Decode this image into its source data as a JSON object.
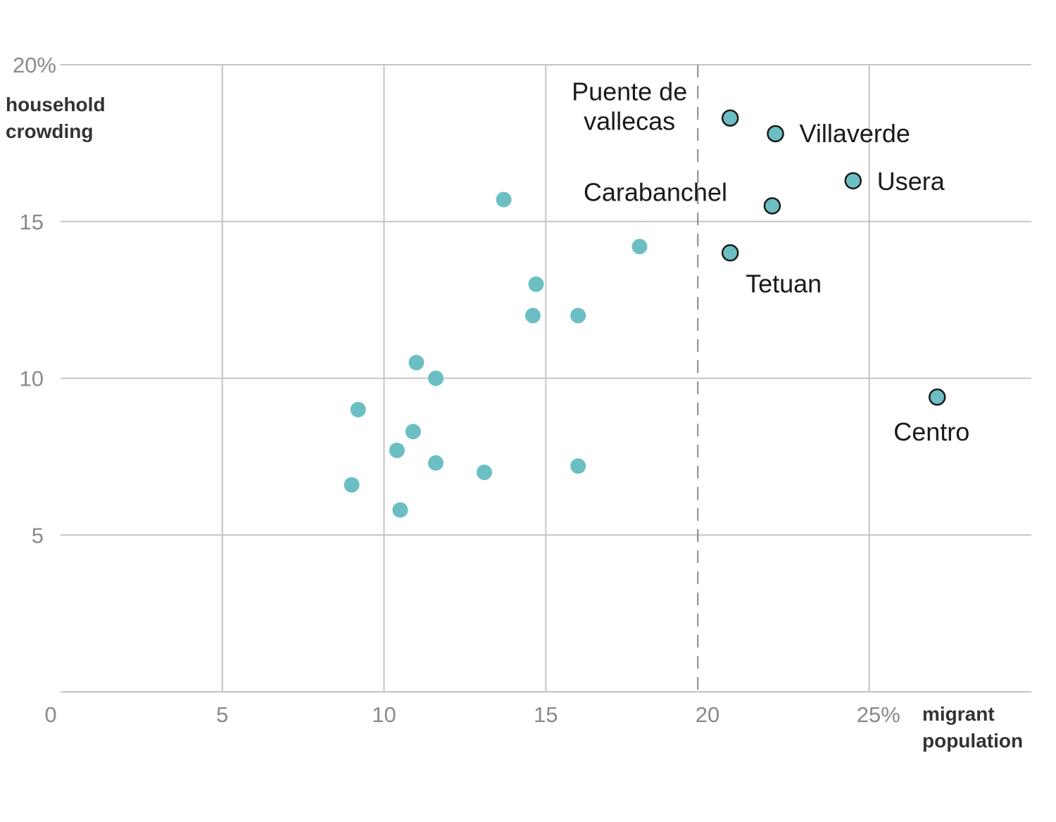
{
  "chart_data": {
    "type": "scatter",
    "title": "",
    "xlabel": [
      "migrant",
      "population"
    ],
    "ylabel": [
      "household",
      "crowding"
    ],
    "xlim": [
      0,
      29
    ],
    "ylim": [
      0,
      20
    ],
    "x_ticks": [
      "0",
      "5",
      "10",
      "15",
      "20",
      "25%"
    ],
    "y_ticks": [
      "5",
      "10",
      "15",
      "20%"
    ],
    "grid": true,
    "reference_line": {
      "axis": "x",
      "value": 19.7,
      "style": "dashed"
    },
    "colors": {
      "point": "#6bbfc3",
      "outline": "#1a1a1a",
      "grid": "#c4c4c4",
      "reference": "#888888"
    },
    "points": [
      {
        "x": 13.7,
        "y": 15.7
      },
      {
        "x": 17.9,
        "y": 14.2
      },
      {
        "x": 14.7,
        "y": 13.0
      },
      {
        "x": 14.6,
        "y": 12.0
      },
      {
        "x": 16.0,
        "y": 12.0
      },
      {
        "x": 11.0,
        "y": 10.5
      },
      {
        "x": 11.6,
        "y": 10.0
      },
      {
        "x": 9.2,
        "y": 9.0
      },
      {
        "x": 10.9,
        "y": 8.3
      },
      {
        "x": 10.4,
        "y": 7.7
      },
      {
        "x": 11.6,
        "y": 7.3
      },
      {
        "x": 13.1,
        "y": 7.0
      },
      {
        "x": 16.0,
        "y": 7.2
      },
      {
        "x": 9.0,
        "y": 6.6
      },
      {
        "x": 10.5,
        "y": 5.8
      }
    ],
    "highlighted": [
      {
        "name": "Puente de vallecas",
        "lines": [
          "Puente de",
          "vallecas"
        ],
        "x": 20.7,
        "y": 18.3
      },
      {
        "name": "Villaverde",
        "lines": [
          "Villaverde"
        ],
        "x": 22.1,
        "y": 17.8
      },
      {
        "name": "Usera",
        "lines": [
          "Usera"
        ],
        "x": 24.5,
        "y": 16.3
      },
      {
        "name": "Carabanchel",
        "lines": [
          "Carabanchel"
        ],
        "x": 22.0,
        "y": 15.5
      },
      {
        "name": "Tetuan",
        "lines": [
          "Tetuan"
        ],
        "x": 20.7,
        "y": 14.0
      },
      {
        "name": "Centro",
        "lines": [
          "Centro"
        ],
        "x": 27.1,
        "y": 9.4
      }
    ]
  }
}
